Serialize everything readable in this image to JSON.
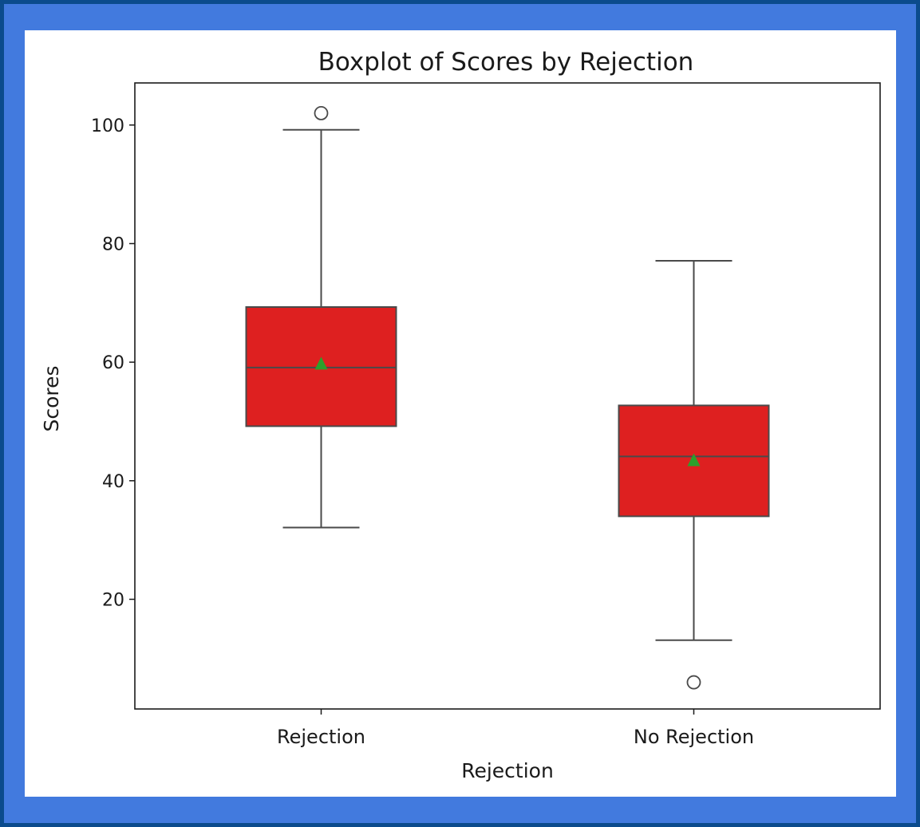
{
  "chart_data": {
    "type": "boxplot",
    "title": "Boxplot of Scores by Rejection",
    "xlabel": "Rejection",
    "ylabel": "Scores",
    "categories": [
      "Rejection",
      "No Rejection"
    ],
    "ylim": [
      1.5,
      107.1
    ],
    "yticks": [
      20,
      40,
      60,
      80,
      100
    ],
    "grid": false,
    "box_color": "#de2020",
    "mean_color": "#2ca02c",
    "boxes": [
      {
        "category": "Rejection",
        "whisker_low": 32.1,
        "q1": 49.2,
        "median": 59.1,
        "q3": 69.3,
        "whisker_high": 99.2,
        "mean": 59.7,
        "outliers": [
          102
        ]
      },
      {
        "category": "No Rejection",
        "whisker_low": 13.1,
        "q1": 34.0,
        "median": 44.1,
        "q3": 52.7,
        "whisker_high": 77.1,
        "mean": 43.4,
        "outliers": [
          6.0
        ]
      }
    ]
  }
}
